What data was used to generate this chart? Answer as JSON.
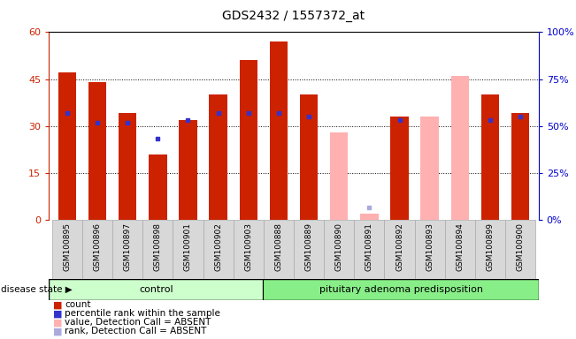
{
  "title": "GDS2432 / 1557372_at",
  "samples": [
    "GSM100895",
    "GSM100896",
    "GSM100897",
    "GSM100898",
    "GSM100901",
    "GSM100902",
    "GSM100903",
    "GSM100888",
    "GSM100889",
    "GSM100890",
    "GSM100891",
    "GSM100892",
    "GSM100893",
    "GSM100894",
    "GSM100899",
    "GSM100900"
  ],
  "n_control": 7,
  "n_disease": 9,
  "count_values": [
    47,
    44,
    34,
    21,
    32,
    40,
    51,
    57,
    40,
    null,
    null,
    33,
    null,
    null,
    40,
    34
  ],
  "rank_values": [
    34,
    31,
    31,
    26,
    32,
    34,
    34,
    34,
    33,
    null,
    null,
    32,
    null,
    null,
    32,
    33
  ],
  "absent_value_values": [
    null,
    null,
    null,
    null,
    null,
    null,
    null,
    null,
    null,
    28,
    2,
    null,
    33,
    46,
    null,
    null
  ],
  "absent_rank_values": [
    null,
    null,
    null,
    null,
    null,
    null,
    null,
    null,
    null,
    null,
    4,
    null,
    null,
    null,
    null,
    null
  ],
  "ylim": [
    0,
    60
  ],
  "yticks": [
    0,
    15,
    30,
    45,
    60
  ],
  "ytick_labels_left": [
    "0",
    "15",
    "30",
    "45",
    "60"
  ],
  "ytick_labels_right": [
    "0%",
    "25%",
    "50%",
    "75%",
    "100%"
  ],
  "left_axis_color": "#cc2200",
  "right_axis_color": "#0000cc",
  "bar_color_red": "#cc2200",
  "bar_color_pink": "#ffb0b0",
  "dot_color_blue": "#3333cc",
  "dot_color_lightblue": "#aaaadd",
  "bg_color_gray": "#d8d8d8",
  "control_bg": "#ccffcc",
  "disease_bg": "#88ee88",
  "group_label_control": "control",
  "group_label_disease": "pituitary adenoma predisposition",
  "disease_state_label": "disease state",
  "legend_items": [
    "count",
    "percentile rank within the sample",
    "value, Detection Call = ABSENT",
    "rank, Detection Call = ABSENT"
  ],
  "legend_colors": [
    "#cc2200",
    "#3333cc",
    "#ffb0b0",
    "#aaaadd"
  ]
}
